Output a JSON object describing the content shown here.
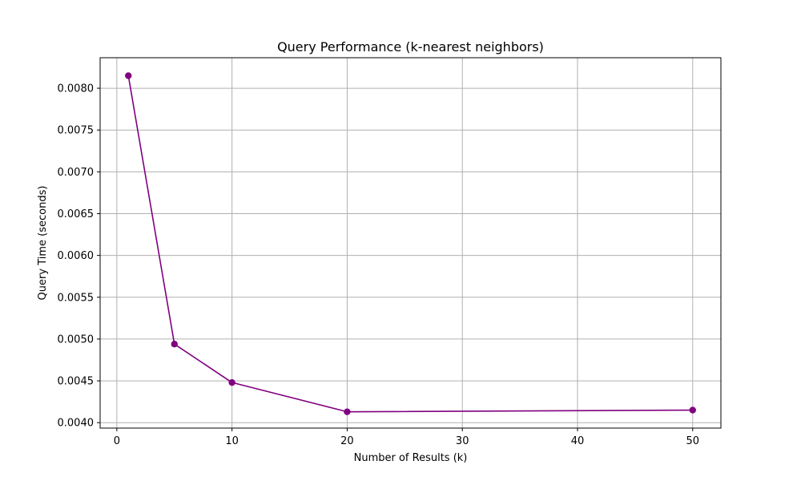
{
  "chart_data": {
    "type": "line",
    "title": "Query Performance (k-nearest neighbors)",
    "xlabel": "Number of Results (k)",
    "ylabel": "Query Time (seconds)",
    "xlim": [
      -1.45,
      52.45
    ],
    "ylim": [
      0.003935,
      0.008365
    ],
    "xticks": [
      0,
      10,
      20,
      30,
      40,
      50
    ],
    "xtick_labels": [
      "0",
      "10",
      "20",
      "30",
      "40",
      "50"
    ],
    "yticks": [
      0.004,
      0.0045,
      0.005,
      0.0055,
      0.006,
      0.0065,
      0.007,
      0.0075,
      0.008
    ],
    "ytick_labels": [
      "0.0040",
      "0.0045",
      "0.0050",
      "0.0055",
      "0.0060",
      "0.0065",
      "0.0070",
      "0.0075",
      "0.0080"
    ],
    "grid": true,
    "series": [
      {
        "name": "Query Time",
        "color": "#800080",
        "marker": "circle",
        "x": [
          1,
          5,
          10,
          20,
          50
        ],
        "y": [
          0.00815,
          0.00494,
          0.00448,
          0.00413,
          0.00415
        ]
      }
    ]
  }
}
